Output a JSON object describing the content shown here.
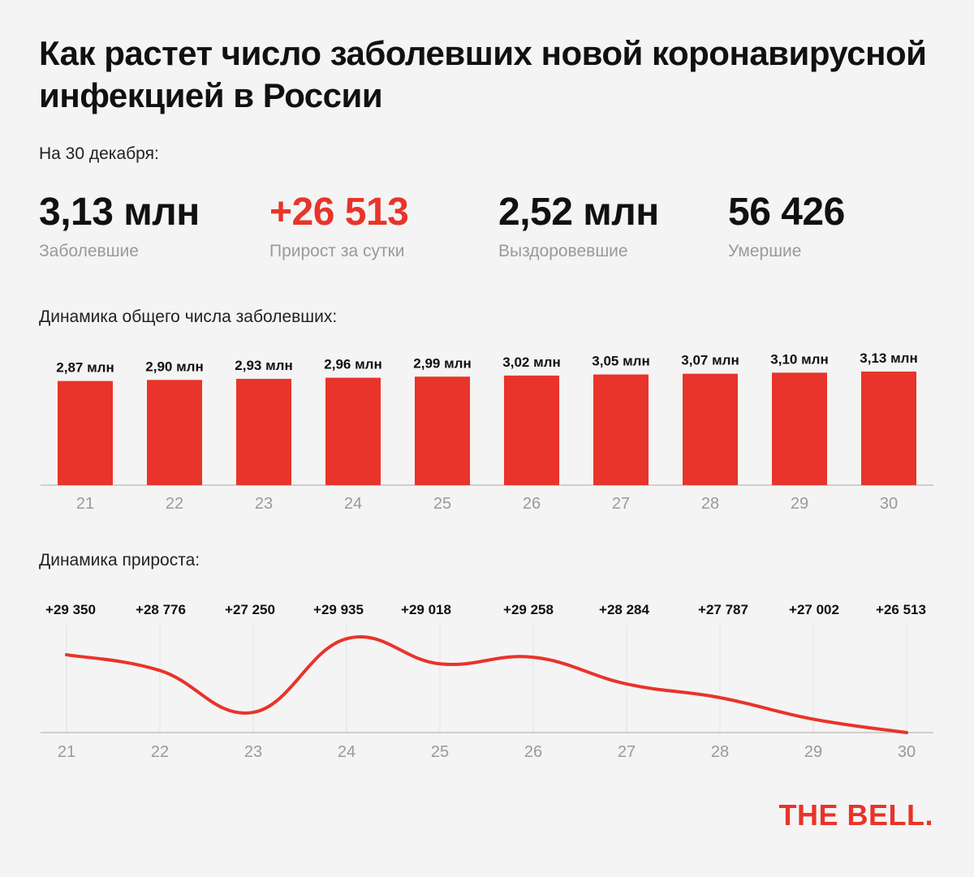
{
  "title": "Как растет число заболевших новой коронавирусной инфекцией в России",
  "date_label": "На 30 декабря:",
  "stats": [
    {
      "value": "3,13 млн",
      "label": "Заболевшие"
    },
    {
      "value": "+26 513",
      "label": "Прирост за сутки"
    },
    {
      "value": "2,52 млн",
      "label": "Выздоровевшие"
    },
    {
      "value": "56 426",
      "label": "Умершие"
    }
  ],
  "brand": "THE BELL.",
  "colors": {
    "accent": "#e8342a",
    "muted": "#9a9a9a",
    "background": "#f4f4f4"
  },
  "chart_data": [
    {
      "type": "bar",
      "title": "Динамика общего числа заболевших:",
      "categories": [
        "21",
        "22",
        "23",
        "24",
        "25",
        "26",
        "27",
        "28",
        "29",
        "30"
      ],
      "values": [
        2.87,
        2.9,
        2.93,
        2.96,
        2.99,
        3.02,
        3.05,
        3.07,
        3.1,
        3.13
      ],
      "value_labels": [
        "2,87 млн",
        "2,90 млн",
        "2,93 млн",
        "2,96 млн",
        "2,99 млн",
        "3,02 млн",
        "3,05 млн",
        "3,07 млн",
        "3,10 млн",
        "3,13 млн"
      ],
      "ylim": [
        0,
        3.13
      ],
      "grid": false
    },
    {
      "type": "line",
      "title": "Динамика прироста:",
      "categories": [
        "21",
        "22",
        "23",
        "24",
        "25",
        "26",
        "27",
        "28",
        "29",
        "30"
      ],
      "values": [
        29350,
        28776,
        27250,
        29935,
        29018,
        29258,
        28284,
        27787,
        27002,
        26513
      ],
      "value_labels": [
        "+29 350",
        "+28 776",
        "+27 250",
        "+29 935",
        "+29 018",
        "+29 258",
        "+28 284",
        "+27 787",
        "+27 002",
        "+26 513"
      ],
      "ylim": [
        26513,
        30150
      ],
      "grid": true
    }
  ]
}
